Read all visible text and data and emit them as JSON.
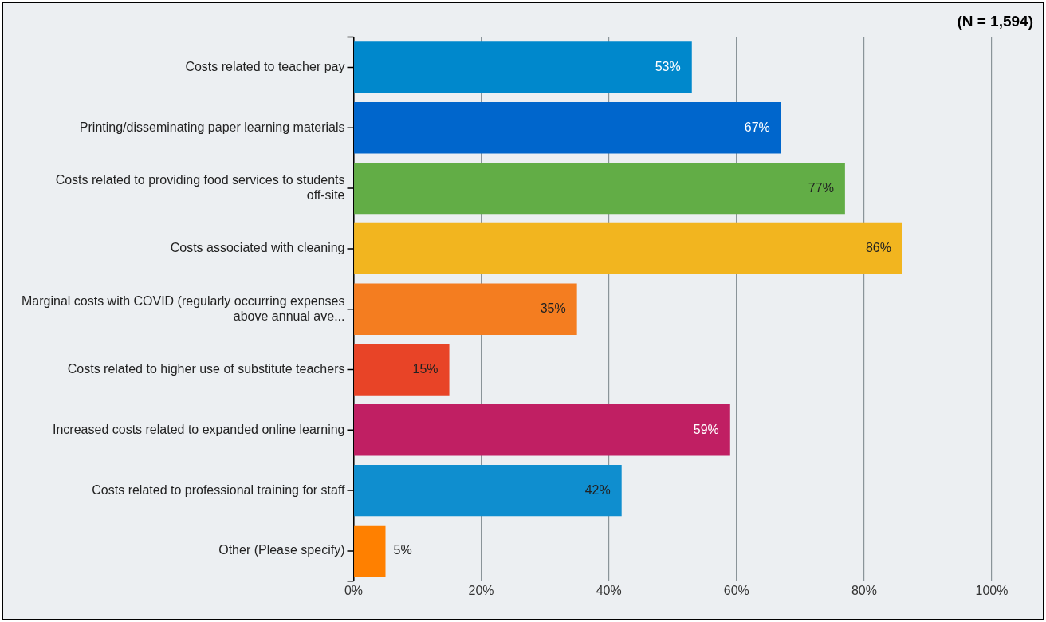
{
  "chart_data": {
    "type": "bar",
    "orientation": "horizontal",
    "categories": [
      "Costs related to teacher pay",
      "Printing/disseminating paper learning materials",
      "Costs related to providing food services to students off-site",
      "Costs associated with cleaning",
      "Marginal costs with COVID (regularly occurring expenses above annual ave...",
      "Costs related to higher use of substitute teachers",
      "Increased costs related to expanded online learning",
      "Costs related to professional training for staff",
      "Other (Please specify)"
    ],
    "values": [
      53,
      67,
      77,
      86,
      35,
      15,
      59,
      42,
      5
    ],
    "colors": [
      "#0088cc",
      "#0066cc",
      "#62ad46",
      "#f2b51f",
      "#f47d20",
      "#e84427",
      "#c01f63",
      "#0f8ecf",
      "#ff8000"
    ],
    "value_labels": [
      "53%",
      "67%",
      "77%",
      "86%",
      "35%",
      "15%",
      "59%",
      "42%",
      "5%"
    ],
    "xlim": [
      0,
      100
    ],
    "xticks": [
      {
        "value": 0,
        "label": "0%"
      },
      {
        "value": 20,
        "label": "20%"
      },
      {
        "value": 40,
        "label": "40%"
      },
      {
        "value": 60,
        "label": "60%"
      },
      {
        "value": 80,
        "label": "80%"
      },
      {
        "value": 100,
        "label": "100%"
      }
    ],
    "grid": "x",
    "legend": false,
    "annotations": [
      "(N = 1,594)"
    ]
  }
}
